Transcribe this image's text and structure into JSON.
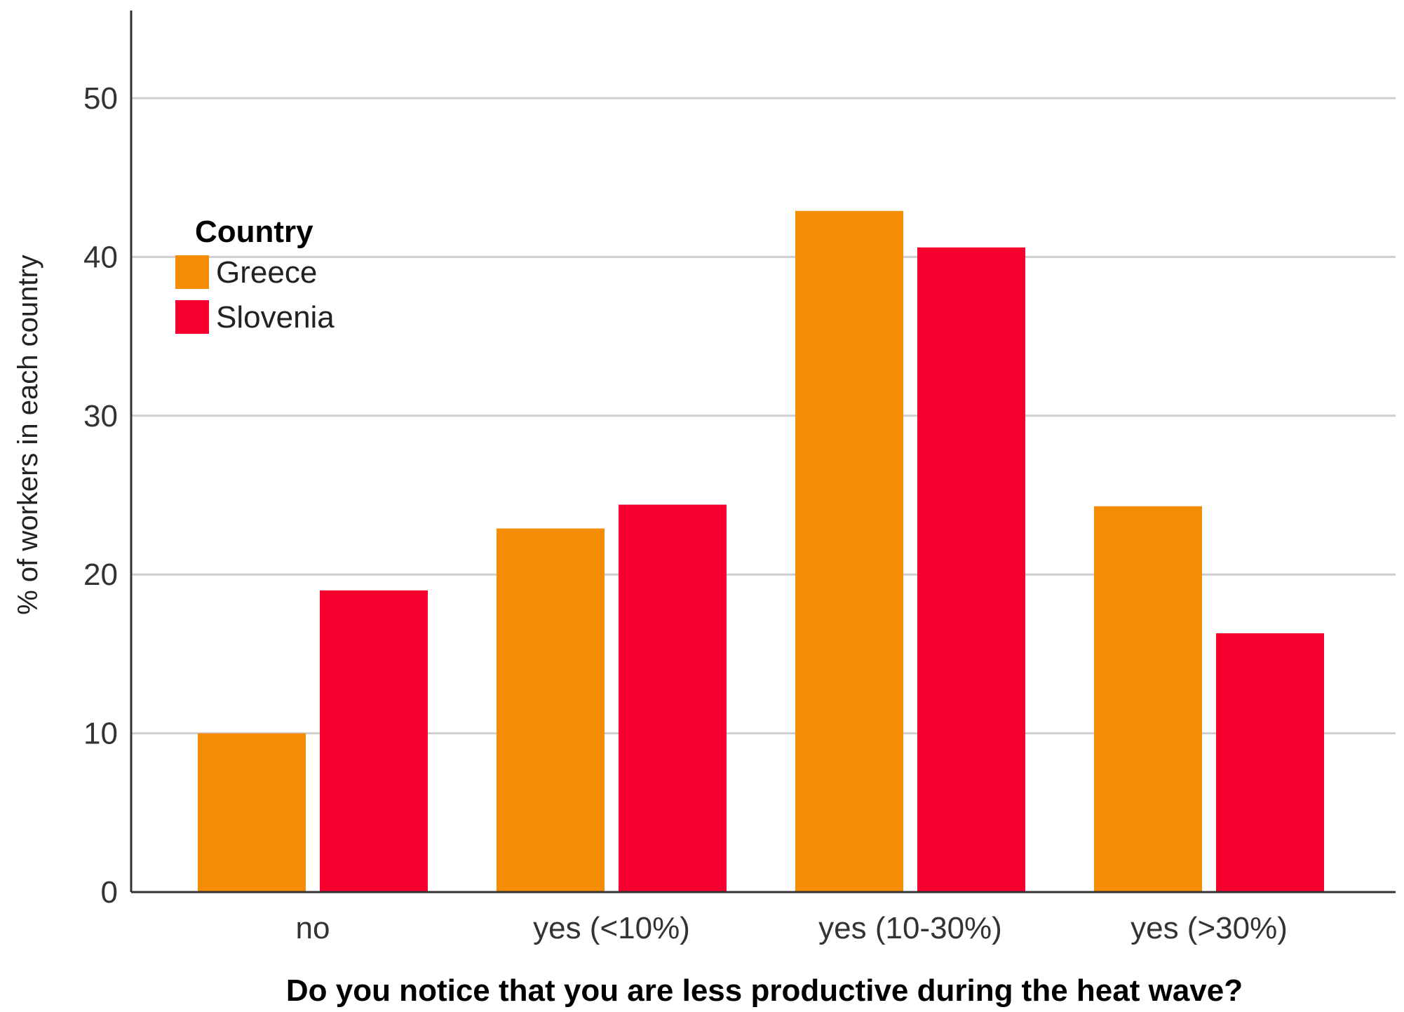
{
  "chart_data": {
    "type": "bar",
    "title": "",
    "xlabel": "Do you notice that you are less productive during the heat wave?",
    "ylabel": "% of workers in each country",
    "categories": [
      "no",
      "yes (<10%)",
      "yes (10-30%)",
      "yes (>30%)"
    ],
    "series": [
      {
        "name": "Greece",
        "color": "#F48C06",
        "values": [
          10.0,
          22.9,
          42.9,
          24.3
        ]
      },
      {
        "name": "Slovenia",
        "color": "#F7002F",
        "values": [
          19.0,
          24.4,
          40.6,
          16.3
        ]
      }
    ],
    "ylim": [
      0,
      55
    ],
    "yticks": [
      0,
      10,
      20,
      30,
      40,
      50
    ],
    "grid": true,
    "legend": {
      "title": "Country",
      "placement": "top-left"
    }
  }
}
